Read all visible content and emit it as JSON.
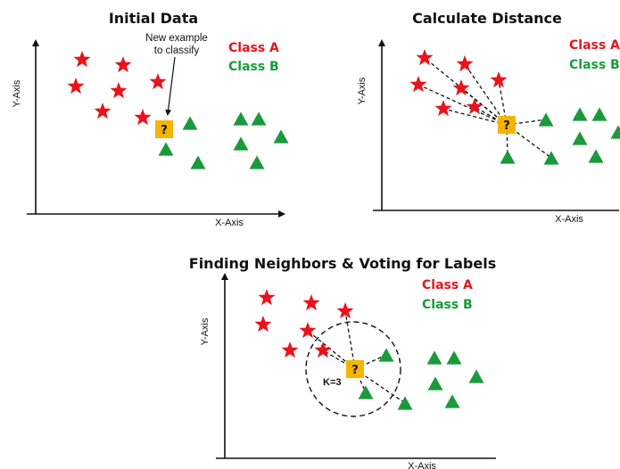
{
  "colors": {
    "class_a": "#e8141b",
    "class_b": "#1a9a3a",
    "query": "#f5b400"
  },
  "panels": {
    "initial": {
      "title": "Initial Data",
      "xlabel": "X-Axis",
      "ylabel": "Y-Axis",
      "legend_a": "Class A",
      "legend_b": "Class B",
      "note_line1": "New example",
      "note_line2": "to classify",
      "query_mark": "?"
    },
    "distance": {
      "title": "Calculate Distance",
      "xlabel": "X-Axis",
      "ylabel": "Y-Axis",
      "legend_a": "Class A",
      "legend_b": "Class B",
      "query_mark": "?"
    },
    "neighbors": {
      "title": "Finding Neighbors & Voting for Labels",
      "xlabel": "X-Axis",
      "ylabel": "Y-Axis",
      "legend_a": "Class A",
      "legend_b": "Class B",
      "k_label": "K=3",
      "query_mark": "?"
    }
  }
}
